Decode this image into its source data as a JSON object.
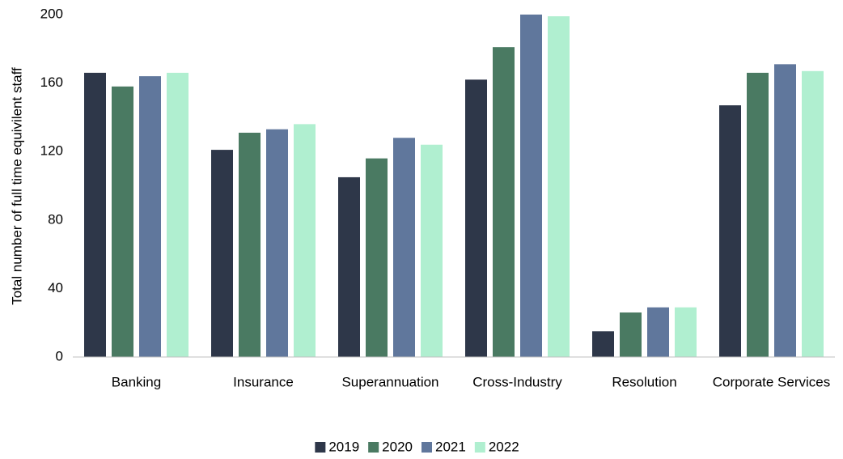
{
  "chart_data": {
    "type": "bar",
    "y_label": "Total number of full time equivilent staff",
    "categories": [
      "Banking",
      "Insurance",
      "Superannuation",
      "Cross-Industry",
      "Resolution",
      "Corporate Services"
    ],
    "series": [
      {
        "name": "2019",
        "color": "#2e3749",
        "values": [
          166,
          121,
          105,
          162,
          15,
          147
        ]
      },
      {
        "name": "2020",
        "color": "#4a7a62",
        "values": [
          158,
          131,
          116,
          181,
          26,
          166
        ]
      },
      {
        "name": "2021",
        "color": "#60779c",
        "values": [
          164,
          133,
          128,
          200,
          29,
          171
        ]
      },
      {
        "name": "2022",
        "color": "#b0efd0",
        "values": [
          166,
          136,
          124,
          199,
          29,
          167
        ]
      }
    ],
    "ylim": [
      0,
      200
    ],
    "yticks": [
      0,
      40,
      80,
      120,
      160,
      200
    ],
    "grid": false,
    "legend": "bottom"
  }
}
